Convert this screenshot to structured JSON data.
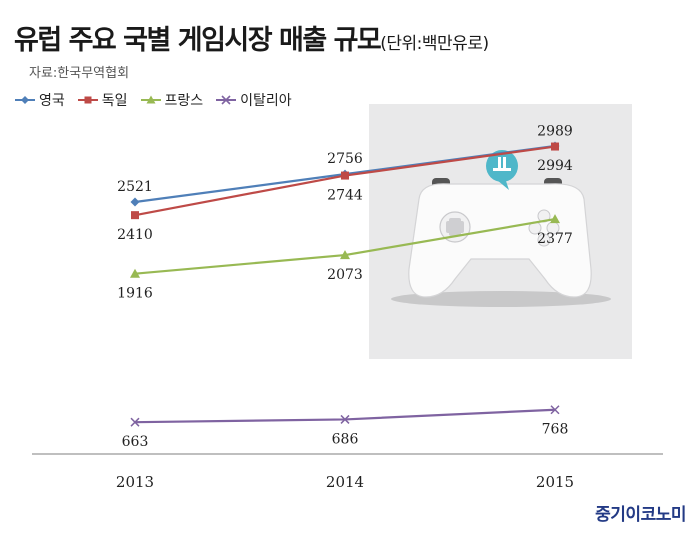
{
  "title": "유럽 주요 국별 게임시장 매출 규모",
  "unit": "(단위:백만유로)",
  "source": "자료:한국무역협회",
  "brand": "중기이코노미",
  "chart_data": {
    "type": "line",
    "categories": [
      "2013",
      "2014",
      "2015"
    ],
    "series": [
      {
        "name": "영국",
        "values": [
          2521,
          2756,
          2994
        ],
        "color": "#4f7fb8",
        "marker": "diamond"
      },
      {
        "name": "독일",
        "values": [
          2410,
          2744,
          2989
        ],
        "color": "#be4a47",
        "marker": "square"
      },
      {
        "name": "프랑스",
        "values": [
          1916,
          2073,
          2377
        ],
        "color": "#98b953",
        "marker": "triangle"
      },
      {
        "name": "이탈리아",
        "values": [
          663,
          686,
          768
        ],
        "color": "#7f63a1",
        "marker": "x"
      }
    ],
    "xlabel": "",
    "ylabel": "",
    "legend": "top-left",
    "grid": false,
    "title": "유럽 주요 국별 게임시장 매출 규모"
  }
}
